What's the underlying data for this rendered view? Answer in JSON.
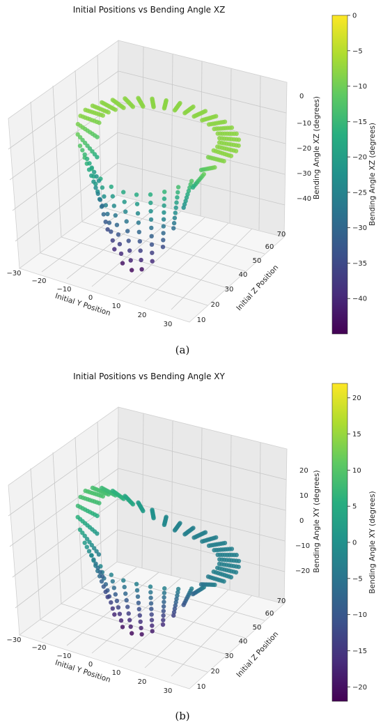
{
  "captions": [
    "(a)",
    "(b)"
  ],
  "chart_data": [
    {
      "type": "scatter3d",
      "title": "Initial Positions vs Bending Angle XZ",
      "xlabel": "Initial Y Position",
      "ylabel": "Initial Z Position",
      "zlabel": "Bending Angle XZ (degrees)",
      "colorbar_label": "Bending Angle XZ (degrees)",
      "colormap": "viridis",
      "x_ticks": [
        "−30",
        "−20",
        "−10",
        "0",
        "10",
        "20",
        "30"
      ],
      "y_ticks": [
        "10",
        "20",
        "30",
        "40",
        "50",
        "60",
        "70"
      ],
      "z_ticks": [
        "0",
        "−10",
        "−20",
        "−30",
        "−40"
      ],
      "colorbar_ticks": [
        "0",
        "−5",
        "−10",
        "−15",
        "−20",
        "−25",
        "−30",
        "−35",
        "−40"
      ],
      "xlim": [
        -35,
        35
      ],
      "ylim": [
        8,
        75
      ],
      "zlim": [
        -45,
        2
      ],
      "color_range": [
        -45,
        0
      ],
      "grid": true,
      "points_description_note": null
    },
    {
      "type": "scatter3d",
      "title": "Initial Positions vs Bending Angle XY",
      "xlabel": "Initial Y Position",
      "ylabel": "Initial Z Position",
      "zlabel": "Bending Angle XY (degrees)",
      "colorbar_label": "Bending Angle XY (degrees)",
      "colormap": "viridis",
      "x_ticks": [
        "−30",
        "−20",
        "−10",
        "0",
        "10",
        "20",
        "30"
      ],
      "y_ticks": [
        "10",
        "20",
        "30",
        "40",
        "50",
        "60",
        "70"
      ],
      "z_ticks": [
        "20",
        "10",
        "0",
        "−10",
        "−20"
      ],
      "colorbar_ticks": [
        "20",
        "15",
        "10",
        "5",
        "0",
        "−5",
        "−10",
        "−15",
        "−20"
      ],
      "xlim": [
        -35,
        35
      ],
      "ylim": [
        8,
        75
      ],
      "zlim": [
        -23,
        23
      ],
      "color_range": [
        -22,
        22
      ],
      "grid": true,
      "points_description_note": null
    }
  ]
}
